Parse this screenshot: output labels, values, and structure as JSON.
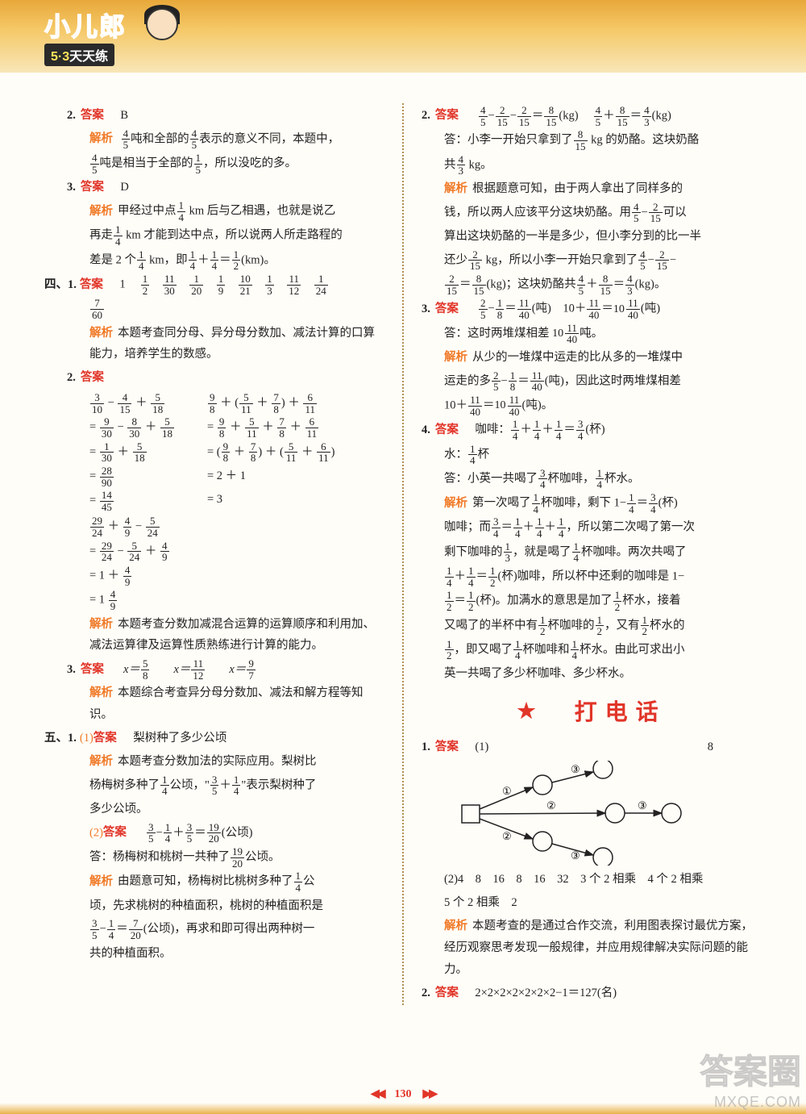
{
  "logo": {
    "top": "小儿郎",
    "bottom_a": "5·3",
    "bottom_b": "天天练"
  },
  "left": {
    "q2": {
      "ans_label": "答案",
      "ans": "B",
      "exp_label": "解析",
      "exp1a": "吨和全部的",
      "exp1b": "表示的意义不同，本题中，",
      "exp2b": "吨是相当于全部的",
      "exp2c": "，所以没吃的多。"
    },
    "q3": {
      "num": "3.",
      "ans_label": "答案",
      "ans": "D",
      "exp_label": "解析",
      "l1a": "甲经过中点",
      "l1b": " km 后与乙相遇，也就是说乙",
      "l2a": "再走",
      "l2b": " km 才能到达中点，所以说两人所走路程的",
      "l3a": "差是 2 个",
      "l3b": " km，即",
      "l3c": "＋",
      "l3d": "＝",
      "l3e": "(km)。"
    },
    "s4q1": {
      "sec": "四、1.",
      "ans_label": "答案",
      "vals": "1",
      "fr": [
        [
          "1",
          "2"
        ],
        [
          "11",
          "30"
        ],
        [
          "1",
          "20"
        ],
        [
          "1",
          "9"
        ],
        [
          "10",
          "21"
        ],
        [
          "1",
          "3"
        ],
        [
          "11",
          "12"
        ],
        [
          "1",
          "24"
        ],
        [
          "7",
          "60"
        ]
      ],
      "exp_label": "解析",
      "exp": "本题考查同分母、异分母分数加、减法计算的口算能力，培养学生的数感。"
    },
    "s4q2": {
      "num": "2.",
      "ans_label": "答案",
      "colA": [
        "3/10 − 4/15 + 5/18",
        "= 9/30 − 8/30 + 5/18",
        "= 1/30 + 5/18",
        "= 28/90",
        "= 14/45"
      ],
      "colB": [
        "9/8 + (5/11 + 7/8) + 6/11",
        "= 9/8 + 5/11 + 7/8 + 6/11",
        "= (9/8 + 7/8) + (5/11 + 6/11)",
        "= 2 + 1",
        "= 3"
      ],
      "colC": [
        "29/24 + 4/9 − 5/24",
        "= 29/24 − 5/24 + 4/9",
        "= 1 + 4/9",
        "= 1 4/9"
      ],
      "exp_label": "解析",
      "exp": "本题考查分数加减混合运算的运算顺序和利用加、减法运算律及运算性质熟练进行计算的能力。"
    },
    "s4q3": {
      "num": "3.",
      "ans_label": "答案",
      "sols": [
        [
          "x＝",
          "5",
          "8"
        ],
        [
          "x＝",
          "11",
          "12"
        ],
        [
          "x＝",
          "9",
          "7"
        ]
      ],
      "exp_label": "解析",
      "exp": "本题综合考查异分母分数加、减法和解方程等知识。"
    },
    "s5q1": {
      "sec": "五、1.",
      "p1": "(1)",
      "ans_label": "答案",
      "ans": "梨树种了多少公顷",
      "exp_label": "解析",
      "exp1a": "本题考查分数加法的实际应用。梨树比",
      "exp1b": "杨梅树多种了",
      "exp1c": "公顷，\"",
      "exp1d": "＋",
      "exp1e": "\"表示梨树种了",
      "exp1f": "多少公顷。",
      "p2": "(2)",
      "ans2_label": "答案",
      "eq2": [
        "3",
        "5",
        "−",
        "1",
        "4",
        "+",
        "3",
        "5",
        "=",
        "19",
        "20"
      ],
      "eq2_tail": "(公顷)",
      "ans_line": "答：杨梅树和桃树一共种了",
      "ans_fr": [
        "19",
        "20"
      ],
      "ans_tail": "公顷。",
      "exp2_label": "解析",
      "exp2a": "由题意可知，杨梅树比桃树多种了",
      "exp2b": "公",
      "exp2c": "顷，先求桃树的种植面积，桃树的种植面积是",
      "exp2d": "(公顷)，再求和即可得出两种树一",
      "exp2e": "共的种植面积。",
      "eq3": [
        "3",
        "5",
        "−",
        "1",
        "4",
        "=",
        "7",
        "20"
      ]
    }
  },
  "right": {
    "q2": {
      "num": "2.",
      "ans_label": "答案",
      "eq1_tail": "(kg)",
      "eq2_tail": "(kg)",
      "a_line_a": "答：小李一开始只拿到了",
      "a_line_b": " kg 的奶酪。这块奶酪",
      "a_line_c": "共",
      "a_line_d": " kg。",
      "exp_label": "解析",
      "exp": [
        "根据题意可知，由于两人拿出了同样多的",
        "钱，所以两人应该平分这块奶酪。用",
        "可以",
        "算出这块奶酪的一半是多少，但小李分到的比一半",
        "还少",
        " kg，所以小李一开始只拿到了",
        "(kg)；这块奶酪共",
        "(kg)。"
      ]
    },
    "q3": {
      "num": "3.",
      "ans_label": "答案",
      "eq_tail": "(吨)",
      "mixed": [
        "10",
        "11",
        "40"
      ],
      "a_line": "答：这时两堆煤相差",
      "a_tail": "吨。",
      "exp_label": "解析",
      "exp1": "从少的一堆煤中运走的比从多的一堆煤中",
      "exp2a": "运走的多",
      "exp2b": "(吨)，因此这时两堆煤相差",
      "exp3": "(吨)。"
    },
    "q4": {
      "num": "4.",
      "ans_label": "答案",
      "l1a": "咖啡：",
      "l1_tail": "(杯)",
      "l2a": "水：",
      "l2_tail": "杯",
      "a_line_a": "答：小英一共喝了",
      "a_line_b": "杯咖啡，",
      "a_line_c": "杯水。",
      "exp_label": "解析",
      "e1a": "第一次喝了",
      "e1b": "杯咖啡，剩下 1−",
      "e1c": "＝",
      "e1d": "(杯)",
      "e2a": "咖啡；而",
      "e2b": "＝",
      "e2c": "＋",
      "e2d": "＋",
      "e2e": "，所以第二次喝了第一次",
      "e3a": "剩下咖啡的",
      "e3b": "，就是喝了",
      "e3c": "杯咖啡。两次共喝了",
      "e4a": "＋",
      "e4b": "＝",
      "e4c": "(杯)咖啡，所以杯中还剩的咖啡是 1−",
      "e5a": "＝",
      "e5b": "(杯)。加满水的意思是加了",
      "e5c": "杯水，接着",
      "e6a": "又喝了的半杯中有",
      "e6b": "杯咖啡的",
      "e6c": "，又有",
      "e6d": "杯水的",
      "e7a": "，即又喝了",
      "e7b": "杯咖啡和",
      "e7c": "杯水。由此可求出小",
      "e8": "英一共喝了多少杯咖啡、多少杯水。"
    },
    "section": {
      "title": "打电话",
      "star": "★"
    },
    "t1": {
      "num": "1.",
      "ans_label": "答案",
      "p1": "(1)",
      "p1_val": "8",
      "tree": {
        "colors": {
          "stroke": "#222",
          "num": "#222"
        },
        "labels": [
          "①",
          "②",
          "③",
          "②",
          "③",
          "③",
          "③"
        ]
      },
      "p2": "(2)4　8　16　8　16　32　3 个 2 相乘　4 个 2 相乘",
      "p2b": "5 个 2 相乘　2",
      "exp_label": "解析",
      "exp": "本题考查的是通过合作交流，利用图表探讨最优方案，经历观察思考发现一般规律，并应用规律解决实际问题的能力。"
    },
    "t2": {
      "num": "2.",
      "ans_label": "答案",
      "eq": "2×2×2×2×2×2×2−1＝127(名)"
    }
  },
  "footer": {
    "page": "130"
  },
  "watermark": {
    "top": "答案圈",
    "bot": "MXQE.COM"
  }
}
